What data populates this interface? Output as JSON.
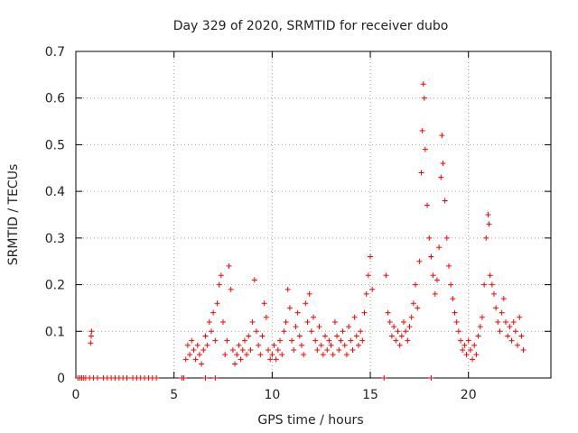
{
  "chart_data": {
    "type": "scatter",
    "title": "Day 329 of 2020, SRMTID for receiver dubo",
    "xlabel": "GPS time / hours",
    "ylabel": "SRMTID / TECUs",
    "xlim": [
      0,
      24.2
    ],
    "ylim": [
      0,
      0.7
    ],
    "xticks": [
      0,
      5,
      10,
      15,
      20
    ],
    "yticks": [
      0,
      0.1,
      0.2,
      0.3,
      0.4,
      0.5,
      0.6,
      0.7
    ],
    "xtick_labels": [
      "0",
      "5",
      "10",
      "15",
      "20"
    ],
    "ytick_labels": [
      "0",
      "0.1",
      "0.2",
      "0.3",
      "0.4",
      "0.5",
      "0.6",
      "0.7"
    ],
    "grid": true,
    "marker": "plus",
    "color": "#ff0000",
    "series": [
      {
        "name": "SRMTID",
        "points": [
          [
            0.1,
            0
          ],
          [
            0.2,
            0
          ],
          [
            0.3,
            0
          ],
          [
            0.4,
            0
          ],
          [
            0.5,
            0
          ],
          [
            0.7,
            0
          ],
          [
            0.9,
            0
          ],
          [
            1.1,
            0
          ],
          [
            1.4,
            0
          ],
          [
            1.6,
            0
          ],
          [
            1.8,
            0
          ],
          [
            2.0,
            0
          ],
          [
            2.2,
            0
          ],
          [
            2.4,
            0
          ],
          [
            2.6,
            0
          ],
          [
            2.9,
            0
          ],
          [
            3.1,
            0
          ],
          [
            3.3,
            0
          ],
          [
            3.5,
            0
          ],
          [
            3.7,
            0
          ],
          [
            3.9,
            0
          ],
          [
            4.1,
            0
          ],
          [
            0.75,
            0.075
          ],
          [
            0.78,
            0.09
          ],
          [
            0.8,
            0.1
          ],
          [
            5.4,
            0
          ],
          [
            5.5,
            0
          ],
          [
            6.6,
            0
          ],
          [
            7.1,
            0
          ],
          [
            15.7,
            0
          ],
          [
            18.1,
            0
          ],
          [
            5.6,
            0.04
          ],
          [
            5.7,
            0.07
          ],
          [
            5.8,
            0.05
          ],
          [
            5.9,
            0.08
          ],
          [
            6.0,
            0.06
          ],
          [
            6.1,
            0.04
          ],
          [
            6.2,
            0.07
          ],
          [
            6.3,
            0.05
          ],
          [
            6.4,
            0.03
          ],
          [
            6.5,
            0.06
          ],
          [
            6.6,
            0.09
          ],
          [
            6.7,
            0.07
          ],
          [
            6.8,
            0.12
          ],
          [
            6.9,
            0.1
          ],
          [
            7.0,
            0.14
          ],
          [
            7.1,
            0.08
          ],
          [
            7.2,
            0.16
          ],
          [
            7.3,
            0.2
          ],
          [
            7.4,
            0.22
          ],
          [
            7.5,
            0.12
          ],
          [
            7.6,
            0.05
          ],
          [
            7.7,
            0.08
          ],
          [
            7.8,
            0.24
          ],
          [
            7.9,
            0.19
          ],
          [
            8.0,
            0.06
          ],
          [
            8.1,
            0.03
          ],
          [
            8.2,
            0.05
          ],
          [
            8.3,
            0.07
          ],
          [
            8.4,
            0.04
          ],
          [
            8.5,
            0.06
          ],
          [
            8.6,
            0.08
          ],
          [
            8.7,
            0.05
          ],
          [
            8.8,
            0.09
          ],
          [
            8.9,
            0.06
          ],
          [
            9.0,
            0.12
          ],
          [
            9.1,
            0.21
          ],
          [
            9.2,
            0.1
          ],
          [
            9.3,
            0.07
          ],
          [
            9.4,
            0.05
          ],
          [
            9.5,
            0.09
          ],
          [
            9.6,
            0.16
          ],
          [
            9.7,
            0.13
          ],
          [
            9.8,
            0.06
          ],
          [
            9.9,
            0.04
          ],
          [
            10.0,
            0.05
          ],
          [
            10.1,
            0.07
          ],
          [
            10.2,
            0.04
          ],
          [
            10.3,
            0.06
          ],
          [
            10.4,
            0.08
          ],
          [
            10.5,
            0.05
          ],
          [
            10.6,
            0.1
          ],
          [
            10.7,
            0.12
          ],
          [
            10.8,
            0.19
          ],
          [
            10.9,
            0.15
          ],
          [
            11.0,
            0.08
          ],
          [
            11.1,
            0.06
          ],
          [
            11.2,
            0.11
          ],
          [
            11.3,
            0.14
          ],
          [
            11.4,
            0.09
          ],
          [
            11.5,
            0.07
          ],
          [
            11.6,
            0.05
          ],
          [
            11.7,
            0.16
          ],
          [
            11.8,
            0.12
          ],
          [
            11.9,
            0.18
          ],
          [
            12.0,
            0.1
          ],
          [
            12.1,
            0.13
          ],
          [
            12.2,
            0.08
          ],
          [
            12.3,
            0.06
          ],
          [
            12.4,
            0.11
          ],
          [
            12.5,
            0.07
          ],
          [
            12.6,
            0.05
          ],
          [
            12.7,
            0.09
          ],
          [
            12.8,
            0.06
          ],
          [
            12.9,
            0.08
          ],
          [
            13.0,
            0.07
          ],
          [
            13.1,
            0.05
          ],
          [
            13.2,
            0.12
          ],
          [
            13.3,
            0.09
          ],
          [
            13.4,
            0.06
          ],
          [
            13.5,
            0.08
          ],
          [
            13.6,
            0.1
          ],
          [
            13.7,
            0.07
          ],
          [
            13.8,
            0.05
          ],
          [
            13.9,
            0.11
          ],
          [
            14.0,
            0.08
          ],
          [
            14.1,
            0.06
          ],
          [
            14.2,
            0.13
          ],
          [
            14.3,
            0.09
          ],
          [
            14.4,
            0.07
          ],
          [
            14.5,
            0.1
          ],
          [
            14.6,
            0.08
          ],
          [
            14.7,
            0.14
          ],
          [
            14.8,
            0.18
          ],
          [
            14.9,
            0.22
          ],
          [
            15.0,
            0.26
          ],
          [
            15.1,
            0.19
          ],
          [
            15.8,
            0.22
          ],
          [
            15.9,
            0.14
          ],
          [
            16.0,
            0.12
          ],
          [
            16.1,
            0.09
          ],
          [
            16.2,
            0.11
          ],
          [
            16.3,
            0.08
          ],
          [
            16.4,
            0.1
          ],
          [
            16.5,
            0.07
          ],
          [
            16.6,
            0.09
          ],
          [
            16.7,
            0.12
          ],
          [
            16.8,
            0.1
          ],
          [
            16.9,
            0.08
          ],
          [
            17.0,
            0.11
          ],
          [
            17.1,
            0.13
          ],
          [
            17.2,
            0.16
          ],
          [
            17.3,
            0.2
          ],
          [
            17.4,
            0.15
          ],
          [
            17.5,
            0.25
          ],
          [
            17.6,
            0.44
          ],
          [
            17.65,
            0.53
          ],
          [
            17.7,
            0.63
          ],
          [
            17.75,
            0.6
          ],
          [
            17.8,
            0.49
          ],
          [
            17.9,
            0.37
          ],
          [
            18.0,
            0.3
          ],
          [
            18.1,
            0.26
          ],
          [
            18.2,
            0.22
          ],
          [
            18.3,
            0.18
          ],
          [
            18.4,
            0.21
          ],
          [
            18.5,
            0.28
          ],
          [
            18.6,
            0.43
          ],
          [
            18.65,
            0.52
          ],
          [
            18.7,
            0.46
          ],
          [
            18.8,
            0.38
          ],
          [
            18.9,
            0.3
          ],
          [
            19.0,
            0.24
          ],
          [
            19.1,
            0.2
          ],
          [
            19.2,
            0.17
          ],
          [
            19.3,
            0.14
          ],
          [
            19.4,
            0.12
          ],
          [
            19.5,
            0.1
          ],
          [
            19.6,
            0.08
          ],
          [
            19.7,
            0.06
          ],
          [
            19.8,
            0.07
          ],
          [
            19.9,
            0.05
          ],
          [
            20.0,
            0.08
          ],
          [
            20.1,
            0.06
          ],
          [
            20.2,
            0.04
          ],
          [
            20.3,
            0.07
          ],
          [
            20.4,
            0.05
          ],
          [
            20.5,
            0.09
          ],
          [
            20.6,
            0.11
          ],
          [
            20.7,
            0.13
          ],
          [
            20.8,
            0.2
          ],
          [
            20.9,
            0.3
          ],
          [
            21.0,
            0.35
          ],
          [
            21.05,
            0.33
          ],
          [
            21.1,
            0.22
          ],
          [
            21.2,
            0.2
          ],
          [
            21.3,
            0.18
          ],
          [
            21.4,
            0.15
          ],
          [
            21.5,
            0.12
          ],
          [
            21.6,
            0.1
          ],
          [
            21.7,
            0.14
          ],
          [
            21.8,
            0.17
          ],
          [
            21.9,
            0.12
          ],
          [
            22.0,
            0.09
          ],
          [
            22.1,
            0.11
          ],
          [
            22.2,
            0.08
          ],
          [
            22.3,
            0.12
          ],
          [
            22.4,
            0.1
          ],
          [
            22.5,
            0.07
          ],
          [
            22.6,
            0.13
          ],
          [
            22.7,
            0.09
          ],
          [
            22.8,
            0.06
          ]
        ]
      }
    ]
  }
}
